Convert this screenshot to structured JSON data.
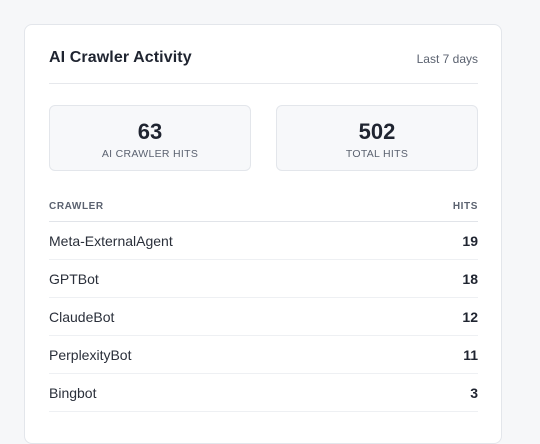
{
  "card": {
    "title": "AI Crawler Activity",
    "range": "Last 7 days"
  },
  "stats": [
    {
      "value": "63",
      "label": "AI CRAWLER HITS"
    },
    {
      "value": "502",
      "label": "TOTAL HITS"
    }
  ],
  "table": {
    "columns": {
      "crawler": "CRAWLER",
      "hits": "HITS"
    },
    "rows": [
      {
        "name": "Meta-ExternalAgent",
        "hits": "19"
      },
      {
        "name": "GPTBot",
        "hits": "18"
      },
      {
        "name": "ClaudeBot",
        "hits": "12"
      },
      {
        "name": "PerplexityBot",
        "hits": "11"
      },
      {
        "name": "Bingbot",
        "hits": "3"
      }
    ]
  },
  "colors": {
    "background": "#f6f7f9",
    "card": "#ffffff",
    "border": "#e3e6eb",
    "text": "#1f2430",
    "muted": "#5b6270"
  }
}
